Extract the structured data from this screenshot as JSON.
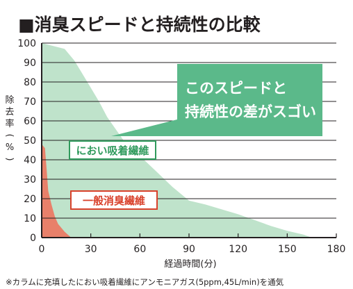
{
  "title": "■消臭スピードと持続性の比較",
  "footnote": "※カラムに充填したにおい吸着繊維にアンモニアガス(5ppm,45L/min)を通気",
  "callout": {
    "line1": "このスピードと",
    "line2": "持続性の差がスゴい"
  },
  "colors": {
    "series_a": "#bfe3cb",
    "series_b": "#e8806a",
    "callout_fill": "#5bb98a",
    "label_a": "#2f9a5c",
    "label_b": "#d9412b",
    "axis": "#231f20",
    "grid": "#231f20"
  },
  "chart_data": {
    "type": "area",
    "xlabel": "経過時間(分)",
    "ylabel": "除去率(%)",
    "xlim": [
      0,
      180
    ],
    "ylim": [
      0,
      100
    ],
    "xticks": [
      "0",
      "30",
      "60",
      "90",
      "120",
      "150",
      "180"
    ],
    "yticks": [
      "0",
      "10",
      "20",
      "30",
      "40",
      "50",
      "60",
      "70",
      "80",
      "90",
      "100"
    ],
    "grid": true,
    "series": [
      {
        "name": "におい吸着繊維",
        "x": [
          0,
          14,
          20,
          25,
          30,
          35,
          40,
          45,
          50,
          60,
          70,
          80,
          90,
          100,
          110,
          120,
          130,
          140,
          150,
          160,
          165
        ],
        "y": [
          100,
          97,
          91,
          84,
          77,
          70,
          62,
          56,
          50,
          42,
          34,
          26,
          19,
          17,
          14.5,
          12,
          9,
          6,
          3.5,
          1.5,
          0
        ]
      },
      {
        "name": "一般消臭繊維",
        "x": [
          0,
          2,
          3,
          4,
          6,
          8,
          10,
          14,
          18
        ],
        "y": [
          48,
          46,
          35,
          24,
          17,
          11,
          7,
          3,
          0
        ]
      }
    ]
  }
}
